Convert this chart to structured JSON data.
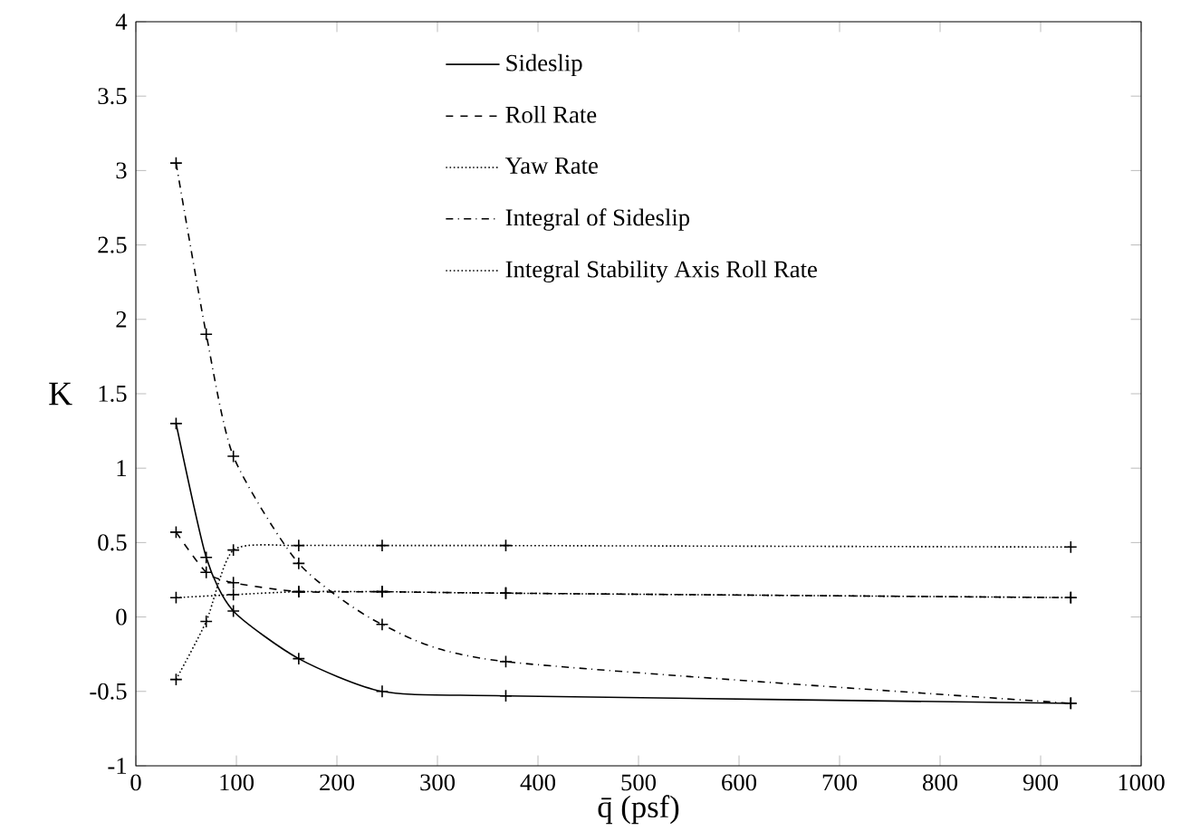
{
  "chart_data": {
    "type": "line",
    "xlabel": "q̄  (psf)",
    "ylabel": "K",
    "x": [
      40,
      70,
      97,
      162,
      245,
      368,
      930
    ],
    "series": [
      {
        "name": "Sideslip",
        "color": "#000000",
        "line_style": "solid",
        "values": [
          1.3,
          0.4,
          0.04,
          -0.28,
          -0.5,
          -0.53,
          -0.58
        ]
      },
      {
        "name": "Roll Rate",
        "color": "#000000",
        "line_style": "dashed",
        "values": [
          0.57,
          0.3,
          0.23,
          0.17,
          0.17,
          0.16,
          0.13
        ]
      },
      {
        "name": "Yaw Rate",
        "color": "#000000",
        "line_style": "dotted",
        "values": [
          0.13,
          null,
          0.15,
          0.17,
          0.17,
          0.16,
          0.13
        ]
      },
      {
        "name": "Integral of Sideslip",
        "color": "#000000",
        "line_style": "dashdot",
        "values": [
          3.05,
          1.9,
          1.08,
          0.36,
          -0.05,
          -0.3,
          -0.58
        ]
      },
      {
        "name": "Integral Stability Axis Roll Rate",
        "color": "#000000",
        "line_style": "dotted",
        "values": [
          -0.42,
          -0.03,
          0.45,
          0.48,
          0.48,
          0.48,
          0.47
        ]
      }
    ],
    "marker": "cross",
    "xlim": [
      0,
      1000
    ],
    "ylim": [
      -1,
      4
    ],
    "xticks": [
      0,
      100,
      200,
      300,
      400,
      500,
      600,
      700,
      800,
      900,
      1000
    ],
    "yticks": [
      -1,
      -0.5,
      0,
      0.5,
      1,
      1.5,
      2,
      2.5,
      3,
      3.5,
      4
    ],
    "grid": false,
    "legend": "top"
  }
}
